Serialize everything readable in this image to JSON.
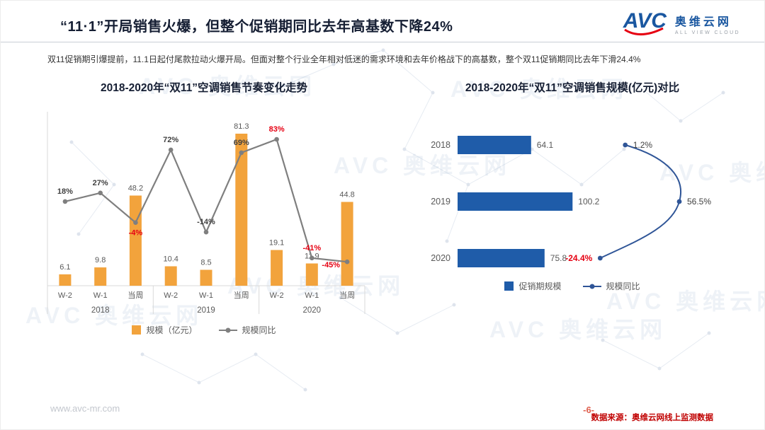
{
  "colors": {
    "accent_blue": "#1A57A0",
    "bar_orange": "#F2A33C",
    "line_gray": "#7F7F7F",
    "bar_blue": "#1F5CA9",
    "line_navy": "#2F5597",
    "negative_red": "#E60012",
    "label_dark": "#404040",
    "title_dark": "#151E33",
    "source_red": "#C00000"
  },
  "header": {
    "title": "“11·1”开局销售火爆，但整个促销期同比去年高基数下降24%",
    "logo": {
      "avc": "AVC",
      "cn": "奥维云网",
      "en": "ALL VIEW CLOUD"
    }
  },
  "subtitle": "双11促销期引爆提前，11.1日起付尾款拉动火爆开局。但面对整个行业全年相对低迷的需求环境和去年价格战下的高基数，整个双11促销期同比去年下滑24.4%",
  "watermark": {
    "text": "AVC 奥维云网"
  },
  "chart_data": [
    {
      "type": "bar",
      "title": "2018-2020年“双11”空调销售节奏变化走势",
      "categories": [
        "W-2",
        "W-1",
        "当周",
        "W-2",
        "W-1",
        "当周",
        "W-2",
        "W-1",
        "当周"
      ],
      "groups": [
        "2018",
        "2019",
        "2020"
      ],
      "series": [
        {
          "name": "规模（亿元）",
          "type": "bar",
          "color": "#F2A33C",
          "values": [
            6.1,
            9.8,
            48.2,
            10.4,
            8.5,
            81.3,
            19.1,
            11.9,
            44.8
          ]
        },
        {
          "name": "规模同比",
          "type": "line",
          "color": "#7F7F7F",
          "values": [
            18,
            27,
            -4,
            72,
            -14,
            69,
            83,
            -41,
            -45
          ],
          "labels": [
            "18%",
            "27%",
            "-4%",
            "72%",
            "-14%",
            "69%",
            "83%",
            "-41%",
            "-45%"
          ],
          "label_colors": [
            "dark",
            "dark",
            "red",
            "dark",
            "dark",
            "dark",
            "red",
            "red",
            "red"
          ],
          "label_pos": [
            "above",
            "above",
            "below",
            "above",
            "above",
            "above",
            "above",
            "above",
            "below-left"
          ]
        }
      ],
      "ylim_bar": [
        0,
        90
      ],
      "ylim_pct": [
        -70,
        100
      ],
      "legend_position": "bottom"
    },
    {
      "type": "bar-horizontal",
      "title": "2018-2020年“双11”空调销售规模(亿元)对比",
      "categories": [
        "2018",
        "2019",
        "2020"
      ],
      "series": [
        {
          "name": "促销期规模",
          "type": "bar",
          "color": "#1F5CA9",
          "values": [
            64.1,
            100.2,
            75.8
          ]
        },
        {
          "name": "规模同比",
          "type": "line",
          "color": "#2F5597",
          "values": [
            1.2,
            56.5,
            -24.4
          ],
          "labels": [
            "1.2%",
            "56.5%",
            "-24.4%"
          ],
          "label_colors": [
            "dark",
            "dark",
            "red"
          ]
        }
      ],
      "xlim": [
        0,
        110
      ],
      "legend_position": "bottom"
    }
  ],
  "footer": {
    "website": "www.avc-mr.com",
    "page": "-6-",
    "source": "数据来源：奥维云网线上监测数据"
  }
}
